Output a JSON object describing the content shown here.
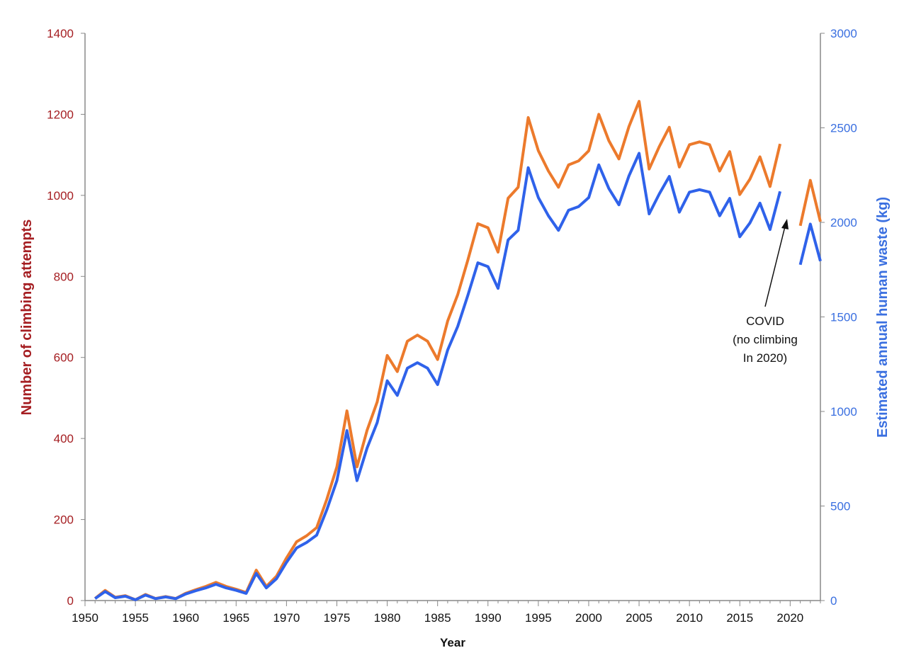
{
  "chart_data": {
    "type": "line",
    "title": "",
    "xlabel": "Year",
    "ylabel_left": "Number of climbing attempts",
    "ylabel_right": "Estimated annual human waste (kg)",
    "xlim": [
      1950,
      2023
    ],
    "ylim_left": [
      0,
      1400
    ],
    "ylim_right": [
      0,
      3000
    ],
    "x_ticks": [
      1950,
      1955,
      1960,
      1965,
      1970,
      1975,
      1980,
      1985,
      1990,
      1995,
      2000,
      2005,
      2010,
      2015,
      2020
    ],
    "left_ticks": [
      0,
      200,
      400,
      600,
      800,
      1000,
      1200,
      1400
    ],
    "right_ticks": [
      0,
      500,
      1000,
      1500,
      2000,
      2500,
      3000
    ],
    "grid": false,
    "x_start": 1951,
    "series": [
      {
        "name": "Number of climbing attempts",
        "axis": "left",
        "color": "#EC7A2C",
        "values": [
          5,
          25,
          8,
          12,
          2,
          15,
          5,
          10,
          5,
          18,
          27,
          35,
          45,
          35,
          28,
          20,
          75,
          35,
          60,
          105,
          145,
          160,
          180,
          250,
          330,
          468,
          330,
          420,
          490,
          605,
          565,
          640,
          655,
          640,
          595,
          690,
          755,
          840,
          930,
          920,
          860,
          993,
          1020,
          1192,
          1110,
          1060,
          1020,
          1075,
          1085,
          1110,
          1200,
          1135,
          1090,
          1170,
          1232,
          1065,
          1120,
          1168,
          1070,
          1125,
          1132,
          1125,
          1060,
          1108,
          1002,
          1040,
          1095,
          1022,
          1127,
          null,
          925,
          1037,
          935
        ]
      },
      {
        "name": "Estimated annual human waste (kg)",
        "axis": "right",
        "color": "#2F62EA",
        "values": [
          10,
          48,
          15,
          23,
          4,
          29,
          10,
          19,
          10,
          35,
          52,
          67,
          86,
          67,
          54,
          38,
          144,
          67,
          115,
          202,
          278,
          307,
          346,
          480,
          634,
          899,
          634,
          806,
          941,
          1162,
          1085,
          1229,
          1258,
          1229,
          1142,
          1325,
          1450,
          1613,
          1786,
          1766,
          1651,
          1907,
          1958,
          2289,
          2131,
          2035,
          1958,
          2064,
          2083,
          2131,
          2304,
          2179,
          2093,
          2246,
          2365,
          2045,
          2150,
          2243,
          2054,
          2160,
          2173,
          2160,
          2035,
          2127,
          1924,
          1997,
          2102,
          1962,
          2164,
          null,
          1776,
          1991,
          1795
        ]
      }
    ],
    "annotation": {
      "lines": [
        "COVID",
        "(no climbing",
        "In 2020)"
      ],
      "points_to_year": 2020
    },
    "left_axis_color": "#A51E22",
    "right_axis_color": "#3A6FE0"
  }
}
